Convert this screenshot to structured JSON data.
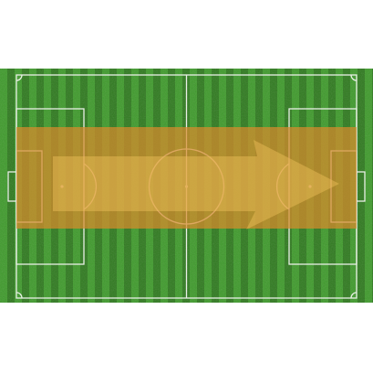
{
  "scene": {
    "type": "football-pitch-diagram",
    "orientation": "horizontal",
    "attack_direction": "left-to-right",
    "highlight": {
      "shape": "rectangle",
      "covers": "central-channel"
    }
  },
  "colors": {
    "grass_dark": "#2f7a1f",
    "grass_light": "#3f9a2c",
    "lines": "#e9efe6",
    "zone_fill": "#d88a2c",
    "zone_opacity": "0.72",
    "arrow_fill": "#f0c05a",
    "arrow_opacity": "0.45"
  },
  "icons": {
    "arrow": "arrow-right-icon"
  }
}
